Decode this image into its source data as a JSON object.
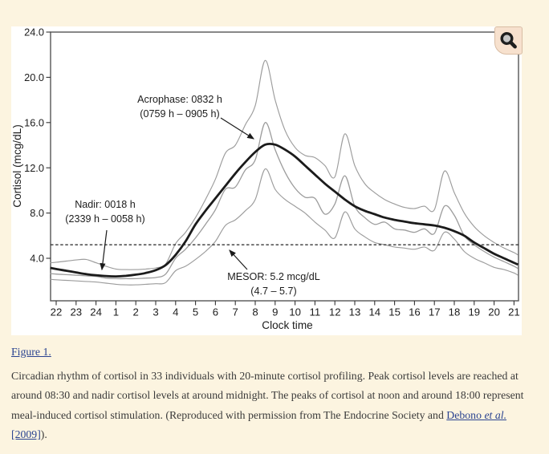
{
  "colors": {
    "page_background": "#fcf4e0",
    "figure_background": "#ffffff",
    "link": "#2a4390",
    "zoom_button_bg": "#f7e1ce",
    "curve_main": "#1b1b1b",
    "curve_gray": "#9c9c9c"
  },
  "figure": {
    "zoom_button_icon": "magnifier-icon"
  },
  "chart_data": {
    "type": "line",
    "title": "",
    "xlabel": "Clock time",
    "ylabel": "Cortisol (mcg/dL)",
    "x_tick_labels": [
      "22",
      "23",
      "24",
      "1",
      "2",
      "3",
      "4",
      "5",
      "6",
      "7",
      "8",
      "9",
      "10",
      "11",
      "12",
      "13",
      "14",
      "15",
      "16",
      "17",
      "18",
      "19",
      "20",
      "21"
    ],
    "y_tick_labels": [
      "24.0",
      "20.0",
      "16.0",
      "12.0",
      "8.0",
      "4.0"
    ],
    "y_tick_values": [
      24,
      20,
      16,
      12,
      8,
      4
    ],
    "ylim": [
      0.3,
      24
    ],
    "grid": false,
    "legend": "none",
    "x_hours_from_2200": [
      -0.3,
      0,
      0.5,
      1,
      1.5,
      2,
      2.5,
      3,
      3.5,
      4,
      4.5,
      5,
      5.5,
      6,
      6.5,
      7,
      7.5,
      8,
      8.5,
      9,
      9.5,
      10,
      10.5,
      11,
      11.5,
      12,
      12.5,
      13,
      13.5,
      14,
      14.5,
      15,
      15.5,
      16,
      16.5,
      17,
      17.5,
      18,
      18.5,
      19,
      19.5,
      20,
      20.5,
      21,
      21.5,
      22,
      22.5,
      23,
      23.2
    ],
    "series": [
      {
        "name": "upper-bound",
        "color": "#9c9c9c",
        "width": 1.15,
        "values": [
          3.6,
          3.65,
          3.75,
          3.85,
          3.9,
          3.6,
          3.3,
          3.05,
          3.0,
          3.0,
          3.05,
          3.15,
          3.5,
          5.3,
          6.3,
          7.6,
          9.2,
          11.0,
          13.3,
          14.0,
          15.8,
          17.5,
          21.5,
          18.0,
          15.3,
          13.8,
          13.1,
          12.9,
          12.2,
          11.2,
          15.0,
          12.2,
          10.6,
          9.8,
          9.2,
          8.8,
          8.5,
          8.4,
          8.6,
          8.3,
          11.7,
          9.8,
          8.0,
          6.8,
          6.0,
          5.4,
          4.9,
          4.5,
          4.3
        ]
      },
      {
        "name": "mean-profile",
        "color": "#9c9c9c",
        "width": 1.3,
        "values": [
          2.65,
          2.6,
          2.55,
          2.5,
          2.45,
          2.4,
          2.25,
          2.2,
          2.2,
          2.2,
          2.25,
          2.3,
          2.6,
          4.0,
          4.8,
          5.8,
          7.0,
          8.3,
          10.1,
          10.3,
          11.8,
          12.7,
          16.0,
          13.6,
          11.6,
          10.2,
          9.4,
          9.3,
          7.9,
          8.8,
          11.3,
          8.6,
          7.6,
          7.0,
          7.2,
          6.6,
          6.5,
          6.3,
          6.6,
          6.2,
          8.6,
          7.8,
          6.0,
          5.2,
          4.6,
          4.1,
          3.7,
          3.3,
          3.1
        ]
      },
      {
        "name": "lower-bound",
        "color": "#9c9c9c",
        "width": 1.15,
        "values": [
          2.15,
          2.1,
          2.05,
          2.0,
          1.95,
          1.9,
          1.8,
          1.7,
          1.65,
          1.65,
          1.7,
          1.75,
          1.85,
          2.9,
          3.3,
          3.9,
          4.6,
          5.5,
          6.9,
          7.4,
          8.2,
          9.2,
          11.9,
          10.1,
          9.2,
          8.6,
          8.0,
          7.2,
          6.5,
          5.8,
          8.1,
          6.6,
          5.9,
          5.4,
          5.2,
          5.0,
          4.9,
          4.8,
          5.0,
          4.7,
          6.3,
          5.7,
          4.6,
          4.0,
          3.6,
          3.2,
          3.0,
          2.7,
          2.5
        ]
      },
      {
        "name": "cosinor-fit",
        "color": "#1b1b1b",
        "width": 2.8,
        "values": [
          3.15,
          3.05,
          2.9,
          2.75,
          2.6,
          2.5,
          2.43,
          2.4,
          2.45,
          2.55,
          2.7,
          2.95,
          3.4,
          4.3,
          5.5,
          7.0,
          8.2,
          9.3,
          10.4,
          11.5,
          12.5,
          13.4,
          14.05,
          14.05,
          13.6,
          13.0,
          12.2,
          11.4,
          10.6,
          9.9,
          9.2,
          8.6,
          8.2,
          7.9,
          7.6,
          7.4,
          7.25,
          7.1,
          7.0,
          6.9,
          6.7,
          6.4,
          6.0,
          5.4,
          4.9,
          4.4,
          4.0,
          3.6,
          3.45
        ]
      }
    ],
    "mesor_line": {
      "value": 5.2,
      "style": "dashed"
    },
    "annotations": [
      {
        "id": "acrophase",
        "line1": "Acrophase: 0832 h",
        "line2": "(0759 h – 0905 h)"
      },
      {
        "id": "nadir",
        "line1": "Nadir: 0018 h",
        "line2": "(2339 h – 0058 h)"
      },
      {
        "id": "mesor",
        "line1": "MESOR: 5.2 mcg/dL",
        "line2": "(4.7 – 5.7)"
      }
    ]
  },
  "caption": {
    "figure_link": "Figure 1.",
    "body": "Circadian rhythm of cortisol in 33 individuals with 20-minute cortisol profiling. Peak cortisol levels are reached at around 08:30 and nadir cortisol levels at around midnight. The peaks of cortisol at noon and around 18:00 represent meal-induced cortisol stimulation. (Reproduced with permission from The Endocrine Society and ",
    "link_author": "Debono ",
    "link_et_al": "et al.",
    "link_year": " [2009]",
    "closing": ")."
  }
}
